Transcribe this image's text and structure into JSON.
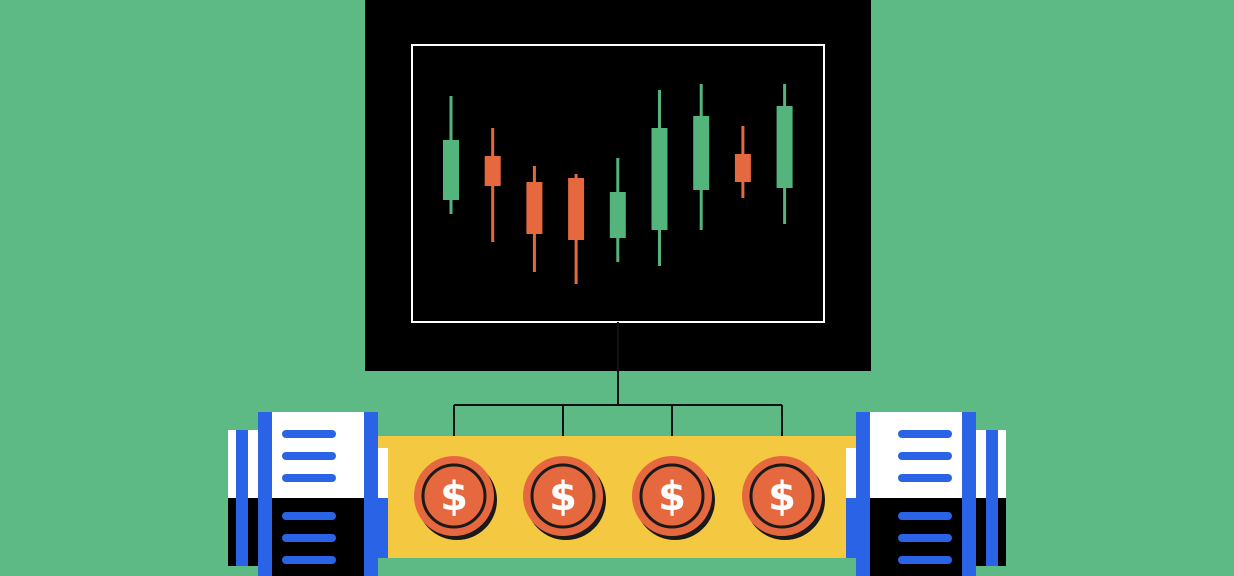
{
  "illustration": {
    "colors": {
      "background": "#5dba85",
      "monitor": "#000000",
      "screen_border": "#ffffff",
      "candle_up": "#53b57c",
      "candle_down": "#e5683f",
      "belt": "#f5c842",
      "coin": "#e5683f",
      "coin_shadow": "#1a1a1a",
      "roller_blue": "#2a63e6",
      "roller_white": "#ffffff",
      "roller_black": "#000000",
      "wire": "#111111"
    },
    "candles": [
      {
        "dir": "up",
        "high": 0.94,
        "open": 0.42,
        "close": 0.72,
        "low": 0.35
      },
      {
        "dir": "down",
        "high": 0.78,
        "open": 0.64,
        "close": 0.49,
        "low": 0.21
      },
      {
        "dir": "down",
        "high": 0.59,
        "open": 0.51,
        "close": 0.25,
        "low": 0.06
      },
      {
        "dir": "down",
        "high": 0.55,
        "open": 0.53,
        "close": 0.22,
        "low": 0.0
      },
      {
        "dir": "up",
        "high": 0.63,
        "open": 0.23,
        "close": 0.46,
        "low": 0.11
      },
      {
        "dir": "up",
        "high": 0.97,
        "open": 0.27,
        "close": 0.78,
        "low": 0.09
      },
      {
        "dir": "up",
        "high": 1.0,
        "open": 0.47,
        "close": 0.84,
        "low": 0.27
      },
      {
        "dir": "down",
        "high": 0.79,
        "open": 0.65,
        "close": 0.51,
        "low": 0.43
      },
      {
        "dir": "up",
        "high": 1.0,
        "open": 0.48,
        "close": 0.89,
        "low": 0.3
      }
    ],
    "coins": [
      {
        "symbol": "$"
      },
      {
        "symbol": "$"
      },
      {
        "symbol": "$"
      },
      {
        "symbol": "$"
      }
    ]
  }
}
